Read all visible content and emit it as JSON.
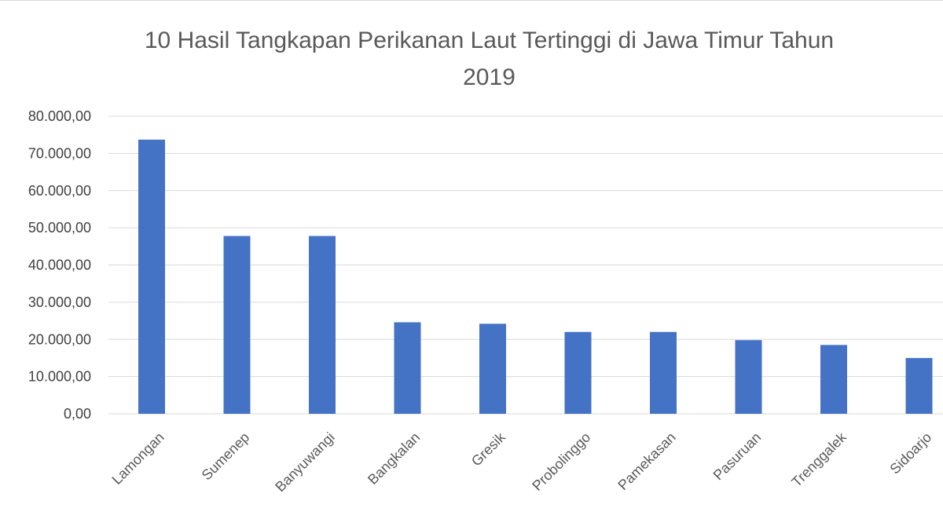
{
  "chart_data": {
    "type": "bar",
    "title_line1": "10 Hasil Tangkapan Perikanan Laut Tertinggi di Jawa Timur Tahun",
    "title_line2": "2019",
    "categories": [
      "Lamongan",
      "Sumenep",
      "Banyuwangi",
      "Bangkalan",
      "Gresik",
      "Probolinggo",
      "Pamekasan",
      "Pasuruan",
      "Trenggalek",
      "Sidoarjo"
    ],
    "values": [
      73700,
      47800,
      47800,
      24600,
      24200,
      22000,
      22000,
      19800,
      18500,
      15000
    ],
    "y_ticks": [
      "0,00",
      "10.000,00",
      "20.000,00",
      "30.000,00",
      "40.000,00",
      "50.000,00",
      "60.000,00",
      "70.000,00",
      "80.000,00"
    ],
    "ylim": [
      0,
      80000
    ],
    "grid": true,
    "bar_color": "#4472c4",
    "grid_color": "#d9d9d9"
  }
}
